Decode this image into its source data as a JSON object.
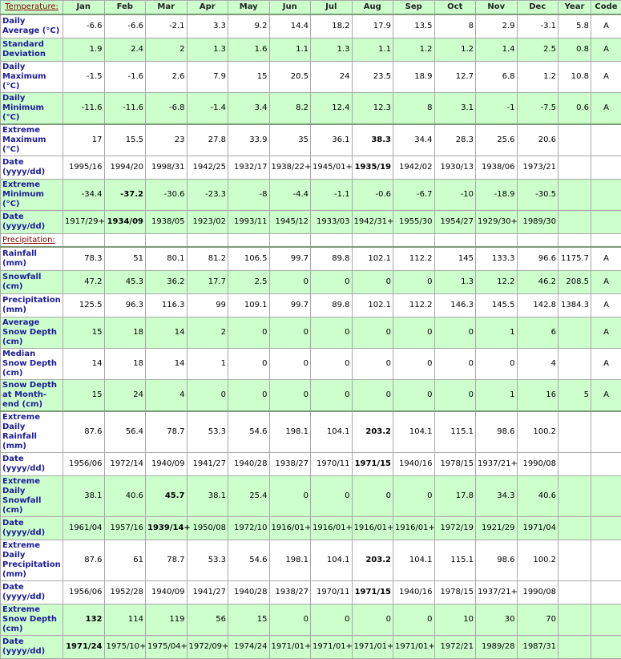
{
  "header": {
    "months": [
      "Jan",
      "Feb",
      "Mar",
      "Apr",
      "May",
      "Jun",
      "Jul",
      "Aug",
      "Sep",
      "Oct",
      "Nov",
      "Dec",
      "Year",
      "Code"
    ],
    "color": "#ccffcc"
  },
  "sections": [
    {
      "title": "Temperature:",
      "groups": [
        [
          {
            "label": "Daily Average (°C)",
            "values": [
              -6.6,
              -6.6,
              -2.1,
              3.3,
              9.2,
              14.4,
              18.2,
              17.9,
              13.5,
              8,
              2.9,
              -3.1,
              5.8,
              "A"
            ]
          },
          {
            "label": "Standard Deviation",
            "color": "#ccffcc",
            "values": [
              1.9,
              2.4,
              2,
              1.3,
              1.6,
              1.1,
              1.3,
              1.1,
              1.2,
              1.2,
              1.4,
              2.5,
              0.8,
              "A"
            ]
          },
          {
            "label": "Daily Maximum (°C)",
            "values": [
              -1.5,
              -1.6,
              2.6,
              7.9,
              15,
              20.5,
              24,
              23.5,
              18.9,
              12.7,
              6.8,
              1.2,
              10.8,
              "A"
            ]
          },
          {
            "label": "Daily Minimum (°C)",
            "color": "#ccffcc",
            "values": [
              -11.6,
              -11.6,
              -6.8,
              -1.4,
              3.4,
              8.2,
              12.4,
              12.3,
              8,
              3.1,
              -1,
              -7.5,
              0.6,
              "A"
            ]
          }
        ],
        [
          {
            "label": "Extreme Maximum (°C)",
            "values": [
              17,
              15.5,
              23,
              27.8,
              33.9,
              35,
              36.1,
              38.3,
              34.4,
              28.3,
              25.6,
              20.6
            ],
            "bold": [
              7
            ]
          },
          {
            "label": "Date (yyyy/dd)",
            "values": [
              "1995/16",
              "1994/20",
              "1998/31",
              "1942/25",
              "1932/17",
              "1938/22+",
              "1945/01+",
              "1935/19",
              "1942/02",
              "1930/13",
              "1938/06",
              "1973/21"
            ],
            "bold": [
              7
            ]
          },
          {
            "label": "Extreme Minimum (°C)",
            "color": "#ccffcc",
            "values": [
              -34.4,
              -37.2,
              -30.6,
              -23.3,
              -8,
              -4.4,
              -1.1,
              -0.6,
              -6.7,
              -10,
              -18.9,
              -30.5
            ],
            "bold": [
              1
            ]
          },
          {
            "label": "Date (yyyy/dd)",
            "color": "#ccffcc",
            "values": [
              "1917/29+",
              "1934/09",
              "1938/05",
              "1923/02",
              "1993/11",
              "1945/12",
              "1933/03",
              "1942/31+",
              "1955/30",
              "1954/27",
              "1929/30+",
              "1989/30"
            ],
            "bold": [
              1
            ]
          }
        ]
      ]
    },
    {
      "title": "Precipitation:",
      "groups": [
        [
          {
            "label": "Rainfall (mm)",
            "values": [
              78.3,
              51,
              80.1,
              81.2,
              106.5,
              99.7,
              89.8,
              102.1,
              112.2,
              145,
              133.3,
              96.6,
              1175.7,
              "A"
            ]
          },
          {
            "label": "Snowfall (cm)",
            "color": "#ccffcc",
            "values": [
              47.2,
              45.3,
              36.2,
              17.7,
              2.5,
              0,
              0,
              0,
              0,
              1.3,
              12.2,
              46.2,
              208.5,
              "A"
            ]
          },
          {
            "label": "Precipitation (mm)",
            "values": [
              125.5,
              96.3,
              116.3,
              99,
              109.1,
              99.7,
              89.8,
              102.1,
              112.2,
              146.3,
              145.5,
              142.8,
              1384.3,
              "A"
            ]
          },
          {
            "label": "Average Snow Depth (cm)",
            "color": "#ccffcc",
            "values": [
              15,
              18,
              14,
              2,
              0,
              0,
              0,
              0,
              0,
              0,
              1,
              6,
              null,
              "A"
            ]
          },
          {
            "label": "Median Snow Depth (cm)",
            "values": [
              14,
              18,
              14,
              1,
              0,
              0,
              0,
              0,
              0,
              0,
              0,
              4,
              null,
              "A"
            ]
          },
          {
            "label": "Snow Depth at Month-end (cm)",
            "color": "#ccffcc",
            "values": [
              15,
              24,
              4,
              0,
              0,
              0,
              0,
              0,
              0,
              0,
              1,
              16,
              5,
              "A"
            ]
          }
        ],
        [
          {
            "label": "Extreme Daily Rainfall (mm)",
            "values": [
              87.6,
              56.4,
              78.7,
              53.3,
              54.6,
              198.1,
              104.1,
              203.2,
              104.1,
              115.1,
              98.6,
              100.2
            ],
            "bold": [
              7
            ]
          },
          {
            "label": "Date (yyyy/dd)",
            "values": [
              "1956/06",
              "1972/14",
              "1940/09",
              "1941/27",
              "1940/28",
              "1938/27",
              "1970/11",
              "1971/15",
              "1940/16",
              "1978/15",
              "1937/21+",
              "1990/08"
            ],
            "bold": [
              7
            ]
          },
          {
            "label": "Extreme Daily Snowfall (cm)",
            "color": "#ccffcc",
            "values": [
              38.1,
              40.6,
              45.7,
              38.1,
              25.4,
              0,
              0,
              0,
              0,
              17.8,
              34.3,
              40.6
            ],
            "bold": [
              2
            ]
          },
          {
            "label": "Date (yyyy/dd)",
            "color": "#ccffcc",
            "values": [
              "1961/04",
              "1957/16",
              "1939/14+",
              "1950/08",
              "1972/10",
              "1916/01+",
              "1916/01+",
              "1916/01+",
              "1916/01+",
              "1972/19",
              "1921/29",
              "1971/04"
            ],
            "bold": [
              2
            ]
          },
          {
            "label": "Extreme Daily Precipitation (mm)",
            "values": [
              87.6,
              61,
              78.7,
              53.3,
              54.6,
              198.1,
              104.1,
              203.2,
              104.1,
              115.1,
              98.6,
              100.2
            ],
            "bold": [
              7
            ]
          },
          {
            "label": "Date (yyyy/dd)",
            "values": [
              "1956/06",
              "1952/28",
              "1940/09",
              "1941/27",
              "1940/28",
              "1938/27",
              "1970/11",
              "1971/15",
              "1940/16",
              "1978/15",
              "1937/21+",
              "1990/08"
            ],
            "bold": [
              7
            ]
          },
          {
            "label": "Extreme Snow Depth (cm)",
            "color": "#ccffcc",
            "values": [
              132,
              114,
              119,
              56,
              15,
              0,
              0,
              0,
              0,
              10,
              30,
              70
            ],
            "bold": [
              0
            ]
          },
          {
            "label": "Date (yyyy/dd)",
            "color": "#ccffcc",
            "values": [
              "1971/24",
              "1975/10+",
              "1975/04+",
              "1972/09+",
              "1974/24",
              "1971/01+",
              "1971/01+",
              "1971/01+",
              "1971/01+",
              "1972/21",
              "1989/28",
              "1987/31"
            ],
            "bold": [
              0
            ]
          }
        ]
      ]
    }
  ]
}
